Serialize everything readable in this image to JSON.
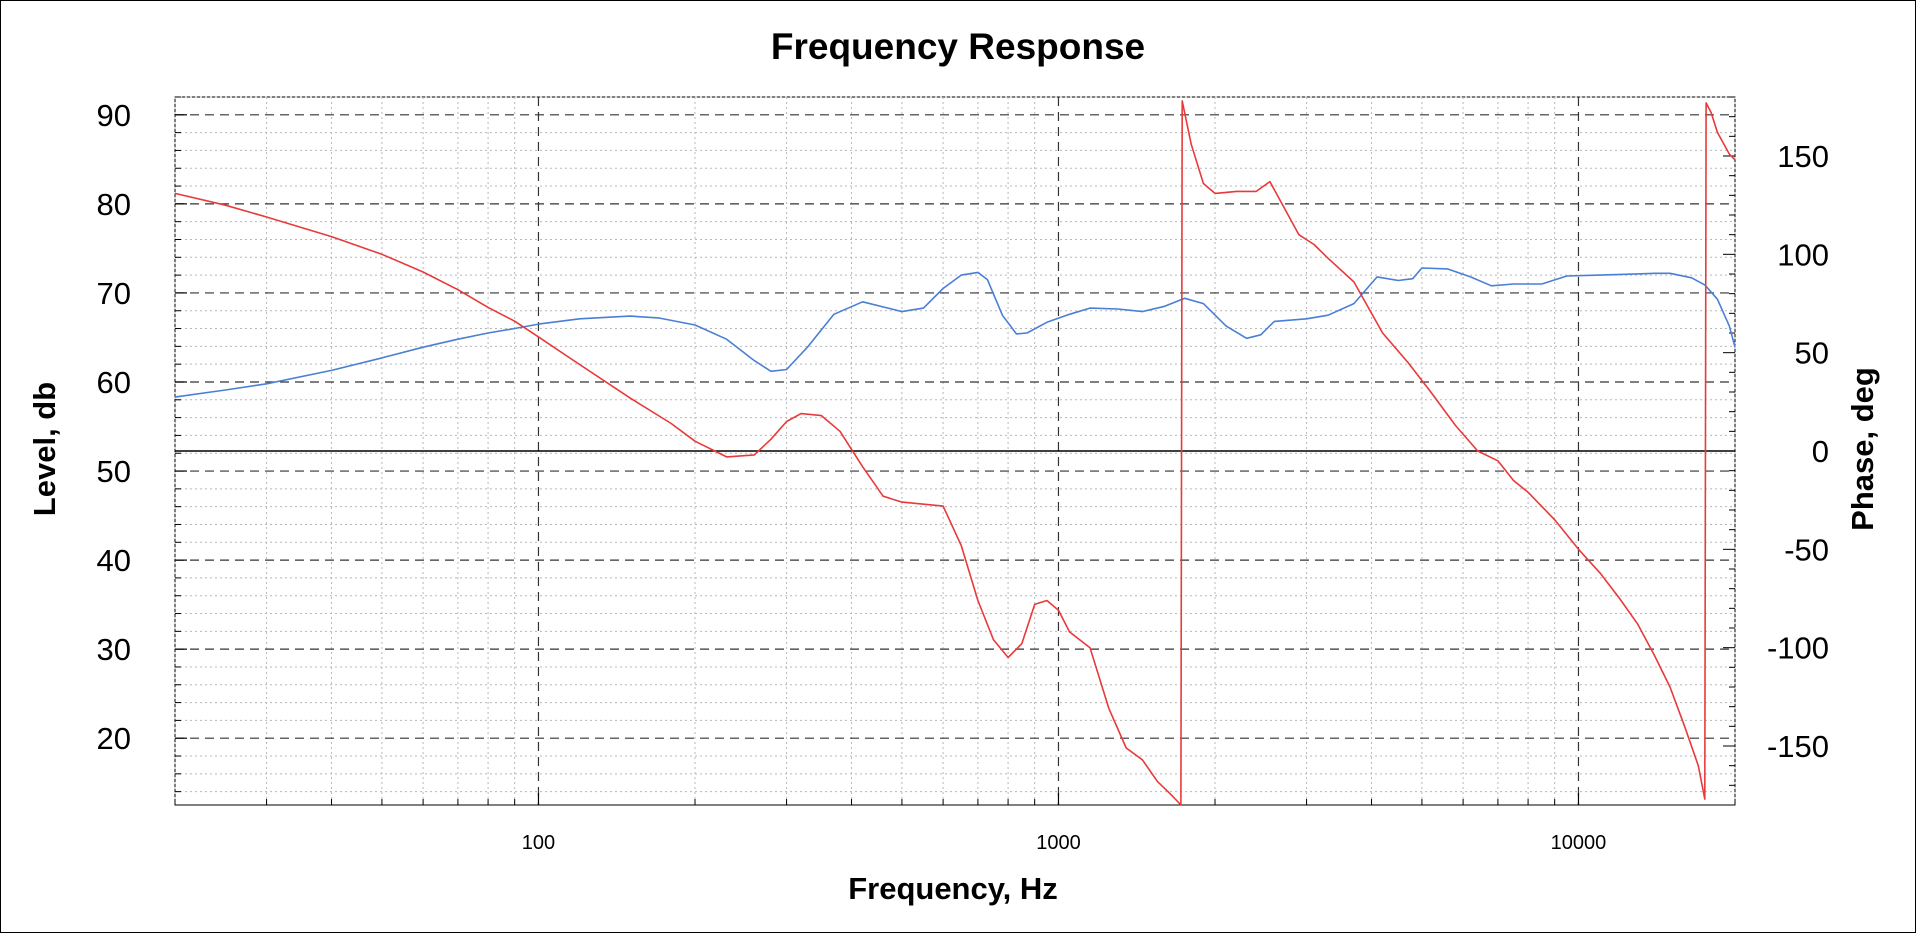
{
  "chart_data": {
    "type": "line",
    "title": "Frequency Response",
    "xlabel": "Frequency, Hz",
    "ylabel_left": "Level, db",
    "ylabel_right": "Phase, deg",
    "x_scale": "log",
    "xlim": [
      20,
      20000
    ],
    "ylim_left": [
      12.5,
      92
    ],
    "ylim_right": [
      -180,
      180
    ],
    "x_tick_labels": [
      "100",
      "1000",
      "10000"
    ],
    "x_tick_values": [
      100,
      1000,
      10000
    ],
    "y_left_ticks": [
      20,
      30,
      40,
      50,
      60,
      70,
      80,
      90
    ],
    "y_right_ticks": [
      -150,
      -100,
      -50,
      0,
      50,
      100,
      150
    ],
    "grid": true,
    "legend": "none",
    "series": [
      {
        "color": "#4a7fd6",
        "axis": "left",
        "x": [
          20,
          25,
          30,
          40,
          50,
          60,
          70,
          80,
          90,
          100,
          120,
          150,
          170,
          200,
          230,
          260,
          280,
          300,
          330,
          370,
          420,
          470,
          500,
          550,
          600,
          650,
          700,
          730,
          780,
          830,
          870,
          950,
          1050,
          1150,
          1300,
          1450,
          1600,
          1750,
          1900,
          2100,
          2300,
          2450,
          2600,
          3000,
          3300,
          3700,
          4100,
          4500,
          4800,
          5000,
          5600,
          6200,
          6800,
          7500,
          8500,
          9500,
          11000,
          12500,
          14000,
          15000,
          16500,
          17500,
          18500,
          19500,
          20000
        ],
        "y": [
          58.3,
          59.1,
          59.8,
          61.3,
          62.7,
          63.9,
          64.8,
          65.5,
          66.0,
          66.5,
          67.1,
          67.4,
          67.2,
          66.4,
          64.8,
          62.4,
          61.2,
          61.4,
          64.0,
          67.6,
          69.0,
          68.3,
          67.9,
          68.3,
          70.5,
          72.0,
          72.3,
          71.5,
          67.5,
          65.4,
          65.5,
          66.7,
          67.6,
          68.3,
          68.2,
          67.9,
          68.5,
          69.4,
          68.8,
          66.3,
          64.9,
          65.3,
          66.8,
          67.1,
          67.5,
          68.8,
          71.8,
          71.4,
          71.6,
          72.8,
          72.7,
          71.8,
          70.8,
          71.0,
          71.0,
          71.9,
          72.0,
          72.1,
          72.2,
          72.2,
          71.7,
          70.9,
          69.3,
          66.3,
          63.9
        ]
      },
      {
        "color": "#e83a3a",
        "axis": "right",
        "x": [
          20,
          25,
          30,
          40,
          50,
          60,
          70,
          80,
          90,
          100,
          120,
          150,
          180,
          200,
          230,
          260,
          280,
          300,
          320,
          350,
          380,
          420,
          460,
          500,
          600,
          650,
          700,
          750,
          800,
          850,
          900,
          950,
          1000,
          1050,
          1150,
          1250,
          1350,
          1450,
          1550,
          1650,
          1720,
          1730,
          1800,
          1900,
          2000,
          2200,
          2400,
          2550,
          2700,
          2900,
          3100,
          3300,
          3700,
          4200,
          4700,
          5200,
          5800,
          6400,
          7000,
          7500,
          8000,
          9000,
          10000,
          11000,
          12000,
          13000,
          14000,
          15000,
          16000,
          17000,
          17500,
          17600,
          18000,
          18500,
          19500,
          20000
        ],
        "y": [
          131,
          125,
          119,
          109,
          100,
          91,
          82,
          73,
          66,
          58,
          44,
          27,
          14,
          5,
          -3,
          -2,
          6,
          15,
          19,
          18,
          10,
          -8,
          -23,
          -26,
          -28,
          -48,
          -76,
          -96,
          -105,
          -98,
          -78,
          -76,
          -81,
          -92,
          -100,
          -131,
          -151,
          -157,
          -168,
          -175,
          -180,
          178,
          156,
          136,
          131,
          132,
          132,
          137,
          125,
          110,
          105,
          98,
          86,
          60,
          45,
          30,
          13,
          0,
          -5,
          -15,
          -21,
          -35,
          -50,
          -62,
          -75,
          -88,
          -104,
          -120,
          -140,
          -160,
          -177,
          177,
          172,
          162,
          151,
          148
        ]
      }
    ]
  }
}
